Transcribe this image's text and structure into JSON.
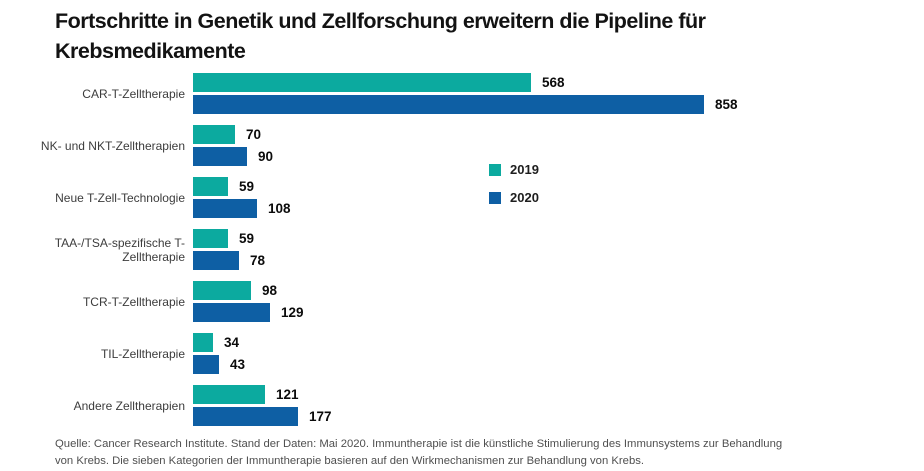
{
  "header": {
    "title_lines": [
      "Fortschritte in Genetik und Zellforschung erweitern die Pipeline für",
      "Krebsmedikamente"
    ]
  },
  "chart_data": {
    "type": "bar",
    "orientation": "horizontal",
    "title": "Fortschritte in Genetik und Zellforschung erweitern die Pipeline für Krebsmedikamente",
    "categories": [
      "CAR-T-Zelltherapie",
      "NK- und NKT-Zelltherapien",
      "Neue T-Zell-Technologie",
      "TAA-/TSA-spezifische T-Zelltherapie",
      "TCR-T-Zelltherapie",
      "TIL-Zelltherapie",
      "Andere Zelltherapien"
    ],
    "series": [
      {
        "name": "2019",
        "color": "#0caa9f",
        "values": [
          568,
          70,
          59,
          59,
          98,
          34,
          121
        ]
      },
      {
        "name": "2020",
        "color": "#0e5fa4",
        "values": [
          858,
          90,
          108,
          78,
          129,
          43,
          177
        ]
      }
    ],
    "xlim": [
      0,
      858
    ],
    "value_labels": true,
    "grid": false,
    "legend_position": "center-right"
  },
  "footer": {
    "lines": [
      "Quelle: Cancer Research Institute. Stand der Daten: Mai 2020. Immuntherapie ist die künstliche Stimulierung des Immunsystems zur Behandlung",
      "von Krebs. Die sieben Kategorien der Immuntherapie basieren auf den Wirkmechanismen zur Behandlung von Krebs."
    ]
  }
}
